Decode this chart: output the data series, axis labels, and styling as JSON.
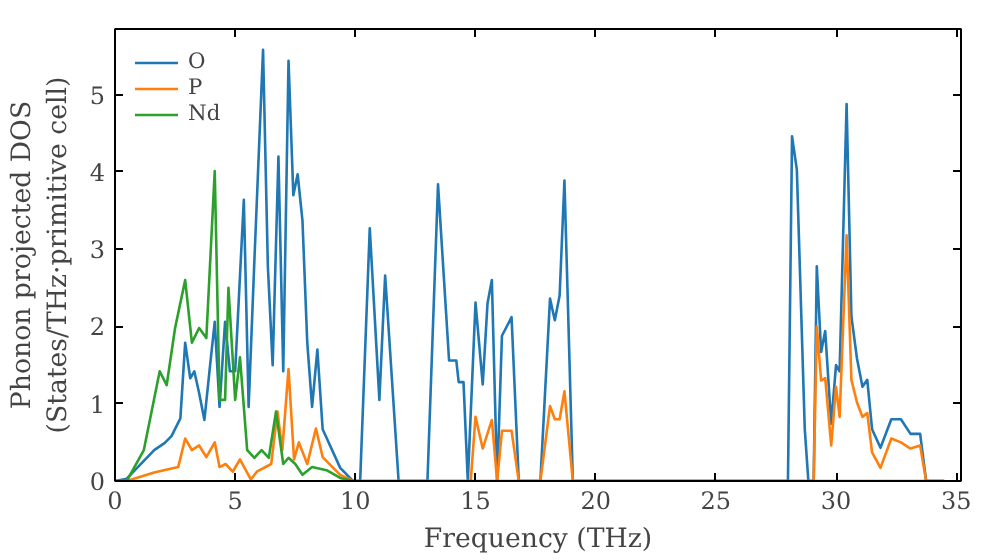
{
  "chart_data": {
    "type": "line",
    "xlabel": "Frequency (THz)",
    "ylabel": "Phonon projected DOS\n(States/THz·primitive cell)",
    "xlim": [
      0,
      35.2
    ],
    "ylim": [
      0,
      5.85
    ],
    "xticks": [
      0,
      5,
      10,
      15,
      20,
      25,
      30,
      35
    ],
    "yticks": [
      0,
      1,
      2,
      3,
      4,
      5
    ],
    "legend": "top left",
    "grid": false,
    "series": [
      {
        "name": "O",
        "color": "#1f77b4",
        "x": [
          0,
          0.49,
          1.63,
          2.06,
          2.35,
          2.72,
          2.92,
          3.13,
          3.3,
          3.5,
          3.72,
          3.93,
          4.15,
          4.35,
          4.58,
          4.78,
          5.0,
          5.36,
          5.56,
          5.79,
          6.16,
          6.36,
          6.56,
          6.8,
          7.0,
          7.22,
          7.42,
          7.6,
          7.8,
          8.0,
          8.2,
          8.42,
          8.64,
          9.37,
          9.9,
          10.2,
          10.6,
          11.0,
          11.24,
          11.8,
          13.0,
          13.44,
          13.9,
          14.2,
          14.3,
          14.5,
          14.68,
          15.0,
          15.3,
          15.5,
          15.68,
          15.9,
          16.1,
          16.5,
          16.8,
          17.7,
          18.1,
          18.3,
          18.5,
          18.7,
          19.05,
          28.0,
          28.17,
          28.37,
          28.7,
          28.85,
          29.07,
          29.2,
          29.38,
          29.55,
          29.8,
          30.0,
          30.15,
          30.44,
          30.64,
          30.87,
          31.1,
          31.3,
          31.5,
          31.85,
          32.3,
          32.7,
          33.1,
          33.5,
          33.75,
          34.5
        ],
        "values": [
          0,
          0.03,
          0.4,
          0.49,
          0.58,
          0.81,
          1.79,
          1.33,
          1.42,
          1.14,
          0.79,
          1.42,
          2.06,
          0.96,
          2.06,
          1.42,
          1.42,
          3.64,
          0.96,
          2.78,
          5.58,
          2.78,
          1.5,
          4.2,
          1.42,
          5.44,
          3.7,
          3.97,
          3.37,
          1.79,
          0.96,
          1.7,
          0.67,
          0.17,
          0,
          0,
          3.27,
          1.05,
          2.66,
          0,
          0,
          3.84,
          1.56,
          1.56,
          1.28,
          1.28,
          0,
          2.31,
          1.25,
          2.3,
          2.6,
          0,
          1.88,
          2.12,
          0,
          0,
          2.36,
          2.08,
          2.4,
          3.89,
          0,
          0,
          4.46,
          4.03,
          0.67,
          0,
          0,
          2.78,
          1.67,
          1.94,
          0.74,
          1.5,
          1.42,
          4.88,
          2.13,
          1.59,
          1.22,
          1.31,
          0.67,
          0.43,
          0.8,
          0.8,
          0.61,
          0.61,
          0,
          0
        ]
      },
      {
        "name": "P",
        "color": "#ff7f0e",
        "x": [
          0,
          0.49,
          1.63,
          2.63,
          2.92,
          3.2,
          3.5,
          3.8,
          4.15,
          4.35,
          4.6,
          4.9,
          5.2,
          5.65,
          5.9,
          6.5,
          6.76,
          6.96,
          7.22,
          7.45,
          7.65,
          8.0,
          8.36,
          8.64,
          9.37,
          9.9,
          14.8,
          15.0,
          15.3,
          15.68,
          15.9,
          16.1,
          16.5,
          16.8,
          17.7,
          18.1,
          18.3,
          18.5,
          18.7,
          19.05,
          29.07,
          29.2,
          29.38,
          29.55,
          29.8,
          30.0,
          30.15,
          30.44,
          30.64,
          30.87,
          31.1,
          31.3,
          31.5,
          31.85,
          32.3,
          32.7,
          33.1,
          33.5,
          33.75,
          34.5
        ],
        "values": [
          0,
          0,
          0.11,
          0.18,
          0.55,
          0.4,
          0.46,
          0.31,
          0.5,
          0.18,
          0.22,
          0.12,
          0.28,
          0.02,
          0.12,
          0.22,
          0.9,
          0.4,
          1.45,
          0.28,
          0.5,
          0.22,
          0.68,
          0.31,
          0.08,
          0,
          0,
          0.83,
          0.42,
          0.79,
          0,
          0.65,
          0.65,
          0,
          0,
          0.97,
          0.8,
          0.8,
          1.16,
          0,
          0,
          2.0,
          1.3,
          1.33,
          0.46,
          1.22,
          0.83,
          3.18,
          1.31,
          1.02,
          0.83,
          0.88,
          0.37,
          0.17,
          0.55,
          0.5,
          0.42,
          0.46,
          0,
          0
        ]
      },
      {
        "name": "Nd",
        "color": "#2ca02c",
        "x": [
          0,
          0.49,
          1.2,
          1.86,
          2.15,
          2.5,
          2.92,
          3.2,
          3.5,
          3.8,
          4.15,
          4.35,
          4.58,
          4.72,
          5.0,
          5.2,
          5.5,
          5.8,
          6.1,
          6.4,
          6.7,
          7.0,
          7.22,
          7.5,
          7.8,
          8.2,
          8.8,
          9.37,
          9.9,
          34.5
        ],
        "values": [
          0,
          0,
          0.4,
          1.42,
          1.24,
          1.98,
          2.6,
          1.79,
          1.98,
          1.85,
          4.01,
          1.05,
          1.05,
          2.5,
          1.05,
          1.6,
          0.4,
          0.3,
          0.4,
          0.3,
          0.9,
          0.22,
          0.3,
          0.22,
          0.08,
          0.18,
          0.14,
          0.04,
          0,
          0
        ]
      }
    ]
  }
}
